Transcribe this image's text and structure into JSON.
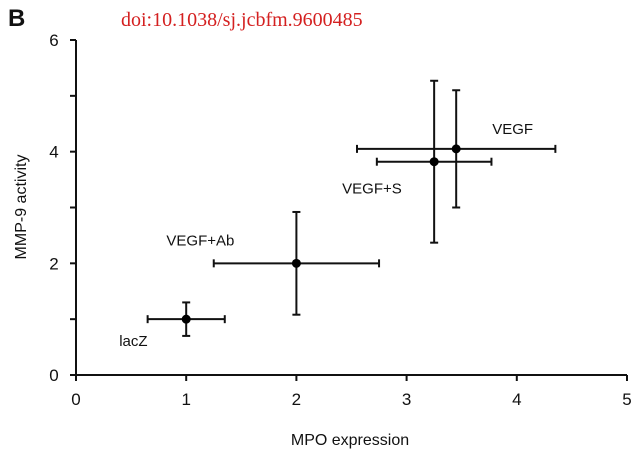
{
  "panel_label": "B",
  "doi_text": "doi:10.1038/sj.jcbfm.9600485",
  "chart_data": {
    "type": "scatter",
    "title": "",
    "xlabel": "MPO expression",
    "ylabel": "MMP-9 activity",
    "xlim": [
      0,
      5
    ],
    "ylim": [
      0,
      6
    ],
    "x_ticks": [
      "0",
      "1",
      "2",
      "3",
      "4",
      "5"
    ],
    "y_ticks": [
      "0",
      "2",
      "4",
      "6"
    ],
    "grid": false,
    "points": [
      {
        "label": "lacZ",
        "x": 1.0,
        "y": 1.0,
        "x_err": 0.35,
        "y_err": 0.3
      },
      {
        "label": "VEGF+Ab",
        "x": 2.0,
        "y": 2.0,
        "x_err": 0.75,
        "y_err": 0.92
      },
      {
        "label": "VEGF+S",
        "x": 3.25,
        "y": 3.82,
        "x_err": 0.52,
        "y_err": 1.45
      },
      {
        "label": "VEGF",
        "x": 3.45,
        "y": 4.05,
        "x_err": 0.9,
        "y_err": 1.05
      }
    ]
  }
}
